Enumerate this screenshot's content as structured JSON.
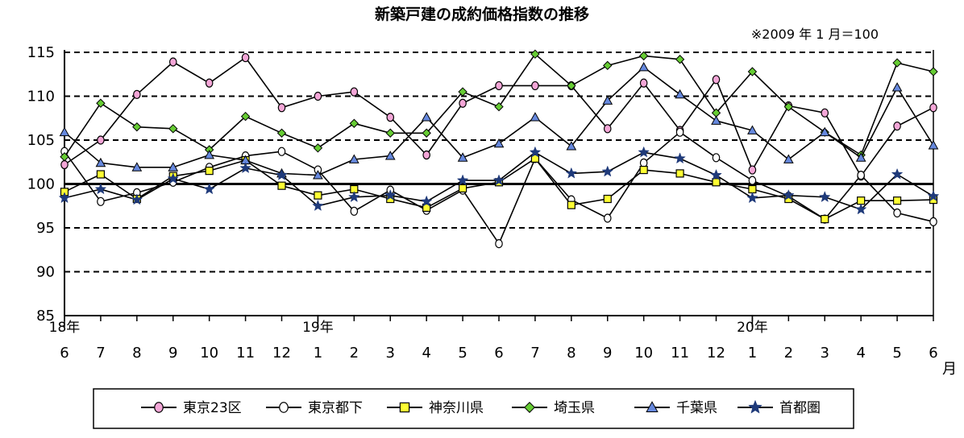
{
  "chart_data": {
    "type": "line",
    "title": "新築戸建の成約価格指数の推移",
    "note": "※2009 年 1 月＝100",
    "x_unit": "月",
    "categories": [
      "6",
      "7",
      "8",
      "9",
      "10",
      "11",
      "12",
      "1",
      "2",
      "3",
      "4",
      "5",
      "6",
      "7",
      "8",
      "9",
      "10",
      "11",
      "12",
      "1",
      "2",
      "3",
      "4",
      "5",
      "6"
    ],
    "year_labels": [
      {
        "index": 0,
        "label": "18年"
      },
      {
        "index": 7,
        "label": "19年"
      },
      {
        "index": 19,
        "label": "20年"
      }
    ],
    "ylim": [
      85,
      115
    ],
    "yticks": [
      85,
      90,
      95,
      100,
      105,
      110,
      115
    ],
    "baseline": 100,
    "grid": "dashed-horizontal",
    "legend_position": "bottom",
    "series": [
      {
        "name": "東京23区",
        "marker": "circle",
        "color": "#f4a6d7",
        "values": [
          102.2,
          105.0,
          110.2,
          113.9,
          111.5,
          114.4,
          108.7,
          110.0,
          110.5,
          107.6,
          103.3,
          109.2,
          111.2,
          111.2,
          111.2,
          106.3,
          111.5,
          106.1,
          111.9,
          101.6,
          108.9,
          108.1,
          100.9,
          106.6,
          108.7
        ]
      },
      {
        "name": "東京都下",
        "marker": "circle-open",
        "color": "#ffffff",
        "values": [
          103.7,
          98.0,
          99.0,
          100.2,
          101.9,
          103.2,
          103.7,
          101.6,
          96.9,
          99.3,
          97.0,
          99.3,
          93.2,
          102.9,
          98.2,
          96.1,
          102.4,
          105.9,
          103.0,
          100.4,
          98.6,
          96.0,
          101.0,
          96.7,
          95.7
        ]
      },
      {
        "name": "神奈川県",
        "marker": "square",
        "color": "#ffff33",
        "values": [
          99.1,
          101.1,
          98.3,
          100.9,
          101.5,
          102.7,
          99.8,
          98.7,
          99.4,
          98.3,
          97.3,
          99.5,
          100.2,
          102.9,
          97.6,
          98.3,
          101.6,
          101.2,
          100.2,
          99.4,
          98.3,
          96.0,
          98.1,
          98.1,
          98.2
        ]
      },
      {
        "name": "埼玉県",
        "marker": "diamond",
        "color": "#66cc33",
        "values": [
          103.1,
          109.2,
          106.5,
          106.3,
          103.9,
          107.7,
          105.8,
          104.1,
          106.9,
          105.8,
          105.8,
          110.5,
          108.8,
          114.8,
          111.2,
          113.5,
          114.6,
          114.2,
          108.1,
          112.8,
          108.8,
          105.9,
          103.3,
          113.8,
          112.8
        ]
      },
      {
        "name": "千葉県",
        "marker": "triangle",
        "color": "#6688dd",
        "values": [
          105.9,
          102.4,
          101.9,
          101.9,
          103.3,
          102.7,
          101.2,
          101.0,
          102.8,
          103.2,
          107.6,
          103.0,
          104.6,
          107.6,
          104.3,
          109.5,
          113.3,
          110.2,
          107.2,
          106.1,
          102.8,
          105.9,
          103.0,
          111.0,
          104.4
        ]
      },
      {
        "name": "首都圏",
        "marker": "star",
        "color": "#1f3a7a",
        "values": [
          98.4,
          99.4,
          98.2,
          100.6,
          99.4,
          101.8,
          101.0,
          97.5,
          98.5,
          98.7,
          98.0,
          100.4,
          100.4,
          103.6,
          101.2,
          101.4,
          103.6,
          102.9,
          101.0,
          98.4,
          98.7,
          98.5,
          97.1,
          101.1,
          98.6
        ]
      }
    ]
  }
}
